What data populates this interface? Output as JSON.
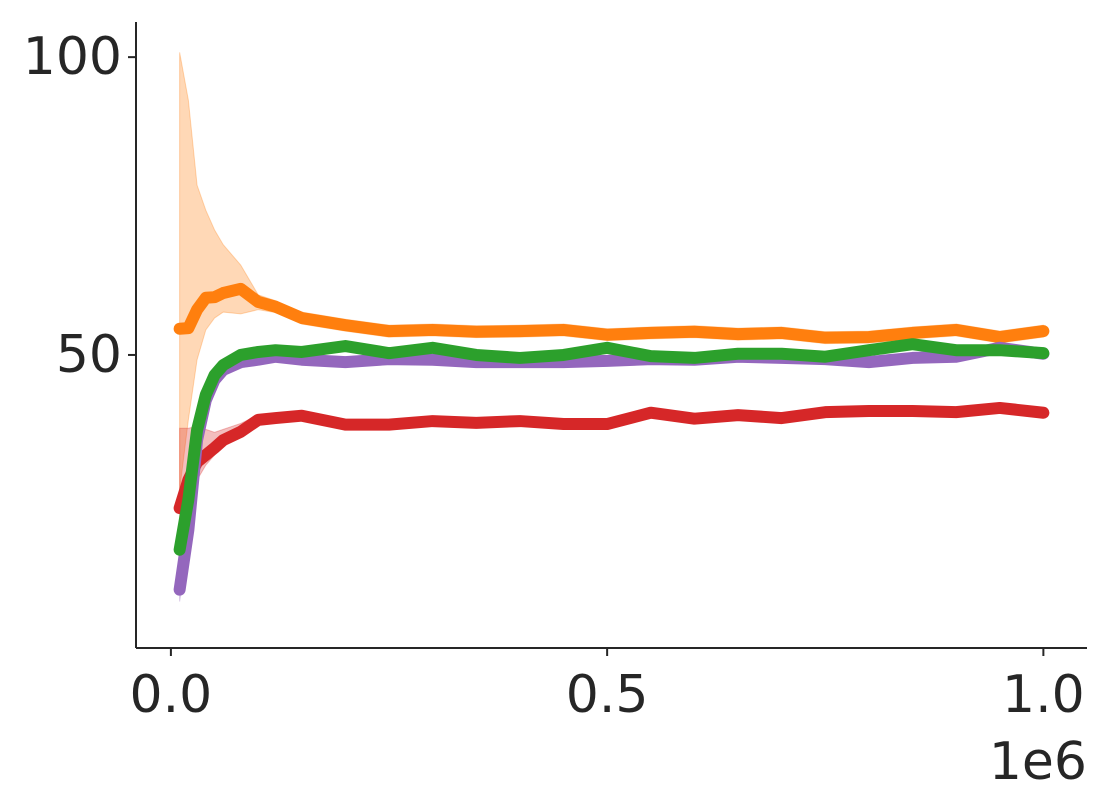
{
  "chart_data": {
    "type": "line",
    "x": [
      0.01,
      0.02,
      0.03,
      0.04,
      0.05,
      0.06,
      0.08,
      0.1,
      0.12,
      0.15,
      0.2,
      0.25,
      0.3,
      0.35,
      0.4,
      0.45,
      0.5,
      0.55,
      0.6,
      0.65,
      0.7,
      0.75,
      0.8,
      0.85,
      0.9,
      0.95,
      1.0
    ],
    "x_offset_label": "1e6",
    "xlim": [
      -0.04,
      1.05
    ],
    "xticks": [
      {
        "value": 0,
        "label": "0.0"
      },
      0.5,
      {
        "value": 1,
        "label": "1.0"
      }
    ],
    "ylim": [
      0.8,
      105.9
    ],
    "yticks": [
      50,
      100
    ],
    "band_opacity": 0.3,
    "series": [
      {
        "color": "#ff7f0e",
        "values": [
          54.4,
          54.5,
          57.6,
          59.6,
          59.7,
          60.4,
          61.1,
          58.9,
          58.1,
          56.2,
          55.0,
          54.0,
          54.2,
          53.9,
          54.0,
          54.2,
          53.4,
          53.7,
          53.9,
          53.5,
          53.7,
          52.9,
          53.0,
          53.7,
          54.2,
          53.0,
          54.0
        ],
        "lower": [
          27.3,
          39.1,
          49.2,
          54.2,
          56.2,
          57.2,
          56.9,
          57.6,
          57.1,
          55.2,
          54.0,
          53.0,
          53.2,
          52.9,
          53.0,
          53.2,
          52.4,
          52.7,
          52.9,
          52.5,
          52.7,
          51.9,
          52.0,
          52.7,
          53.2,
          52.0,
          53.0
        ],
        "upper": [
          100.8,
          92.8,
          78.5,
          74.3,
          71.0,
          68.5,
          65.1,
          60.1,
          59.1,
          57.2,
          56.0,
          55.0,
          55.2,
          54.9,
          55.0,
          55.2,
          54.4,
          54.7,
          54.9,
          54.5,
          54.7,
          53.9,
          54.0,
          54.7,
          55.2,
          54.0,
          55.0
        ]
      },
      {
        "color": "#d62728",
        "values": [
          24.3,
          29.0,
          32.0,
          33.2,
          34.4,
          35.7,
          37.1,
          39.1,
          39.4,
          39.8,
          38.3,
          38.3,
          38.9,
          38.6,
          38.9,
          38.4,
          38.4,
          40.3,
          39.3,
          39.9,
          39.4,
          40.4,
          40.6,
          40.6,
          40.4,
          41.1,
          40.3
        ],
        "lower": [
          22.3,
          25.7,
          29.0,
          31.5,
          33.2,
          34.7,
          36.3,
          38.3,
          38.6,
          39.0,
          37.5,
          37.5,
          38.1,
          37.8,
          38.1,
          37.6,
          37.6,
          39.5,
          38.5,
          39.1,
          38.6,
          39.6,
          39.8,
          39.8,
          39.6,
          40.3,
          39.5
        ],
        "upper": [
          37.7,
          37.7,
          38.0,
          37.5,
          37.0,
          37.5,
          38.5,
          39.9,
          40.2,
          40.6,
          39.1,
          39.1,
          39.7,
          39.4,
          39.7,
          39.2,
          39.2,
          41.1,
          40.1,
          40.7,
          40.2,
          41.2,
          41.4,
          41.4,
          41.2,
          41.9,
          41.1
        ]
      },
      {
        "color": "#9467bd",
        "values": [
          10.6,
          20.6,
          35.7,
          42.4,
          45.8,
          47.5,
          48.8,
          49.2,
          49.7,
          49.2,
          48.8,
          49.3,
          49.2,
          48.8,
          48.8,
          48.8,
          49.0,
          49.3,
          49.2,
          49.7,
          49.5,
          49.3,
          48.8,
          49.5,
          49.7,
          51.2,
          50.2
        ],
        "lower": [
          8.6,
          18.6,
          33.7,
          40.9,
          44.6,
          46.5,
          47.8,
          48.4,
          48.9,
          48.4,
          48.0,
          48.5,
          48.4,
          48.0,
          48.0,
          48.0,
          48.2,
          48.5,
          48.4,
          48.9,
          48.7,
          48.5,
          48.0,
          48.7,
          48.9,
          50.4,
          49.4
        ],
        "upper": [
          12.6,
          22.6,
          37.7,
          43.9,
          47.0,
          48.5,
          49.8,
          50.0,
          50.5,
          50.0,
          49.6,
          50.1,
          50.0,
          49.6,
          49.6,
          49.6,
          49.8,
          50.1,
          50.0,
          50.5,
          50.3,
          50.1,
          49.6,
          50.3,
          50.5,
          52.0,
          51.0
        ]
      },
      {
        "color": "#2ca02c",
        "values": [
          17.3,
          25.7,
          37.4,
          43.3,
          46.6,
          48.3,
          50.0,
          50.5,
          50.8,
          50.5,
          51.5,
          50.3,
          51.2,
          50.0,
          49.5,
          50.0,
          51.2,
          49.8,
          49.5,
          50.2,
          50.2,
          49.7,
          50.8,
          51.8,
          50.8,
          50.8,
          50.3
        ],
        "lower": [
          14.3,
          23.7,
          35.4,
          41.8,
          45.4,
          47.3,
          49.2,
          49.7,
          50.0,
          49.7,
          50.7,
          49.5,
          50.4,
          49.2,
          48.7,
          49.2,
          50.4,
          49.0,
          48.7,
          49.4,
          49.4,
          48.9,
          50.0,
          51.0,
          50.0,
          50.0,
          49.5
        ],
        "upper": [
          20.3,
          27.7,
          39.4,
          44.8,
          47.8,
          49.3,
          50.8,
          51.3,
          51.6,
          51.3,
          52.3,
          51.1,
          52.0,
          50.8,
          50.3,
          50.8,
          52.0,
          50.6,
          50.3,
          51.0,
          51.0,
          50.5,
          51.6,
          52.6,
          51.6,
          51.6,
          51.1
        ]
      }
    ]
  }
}
